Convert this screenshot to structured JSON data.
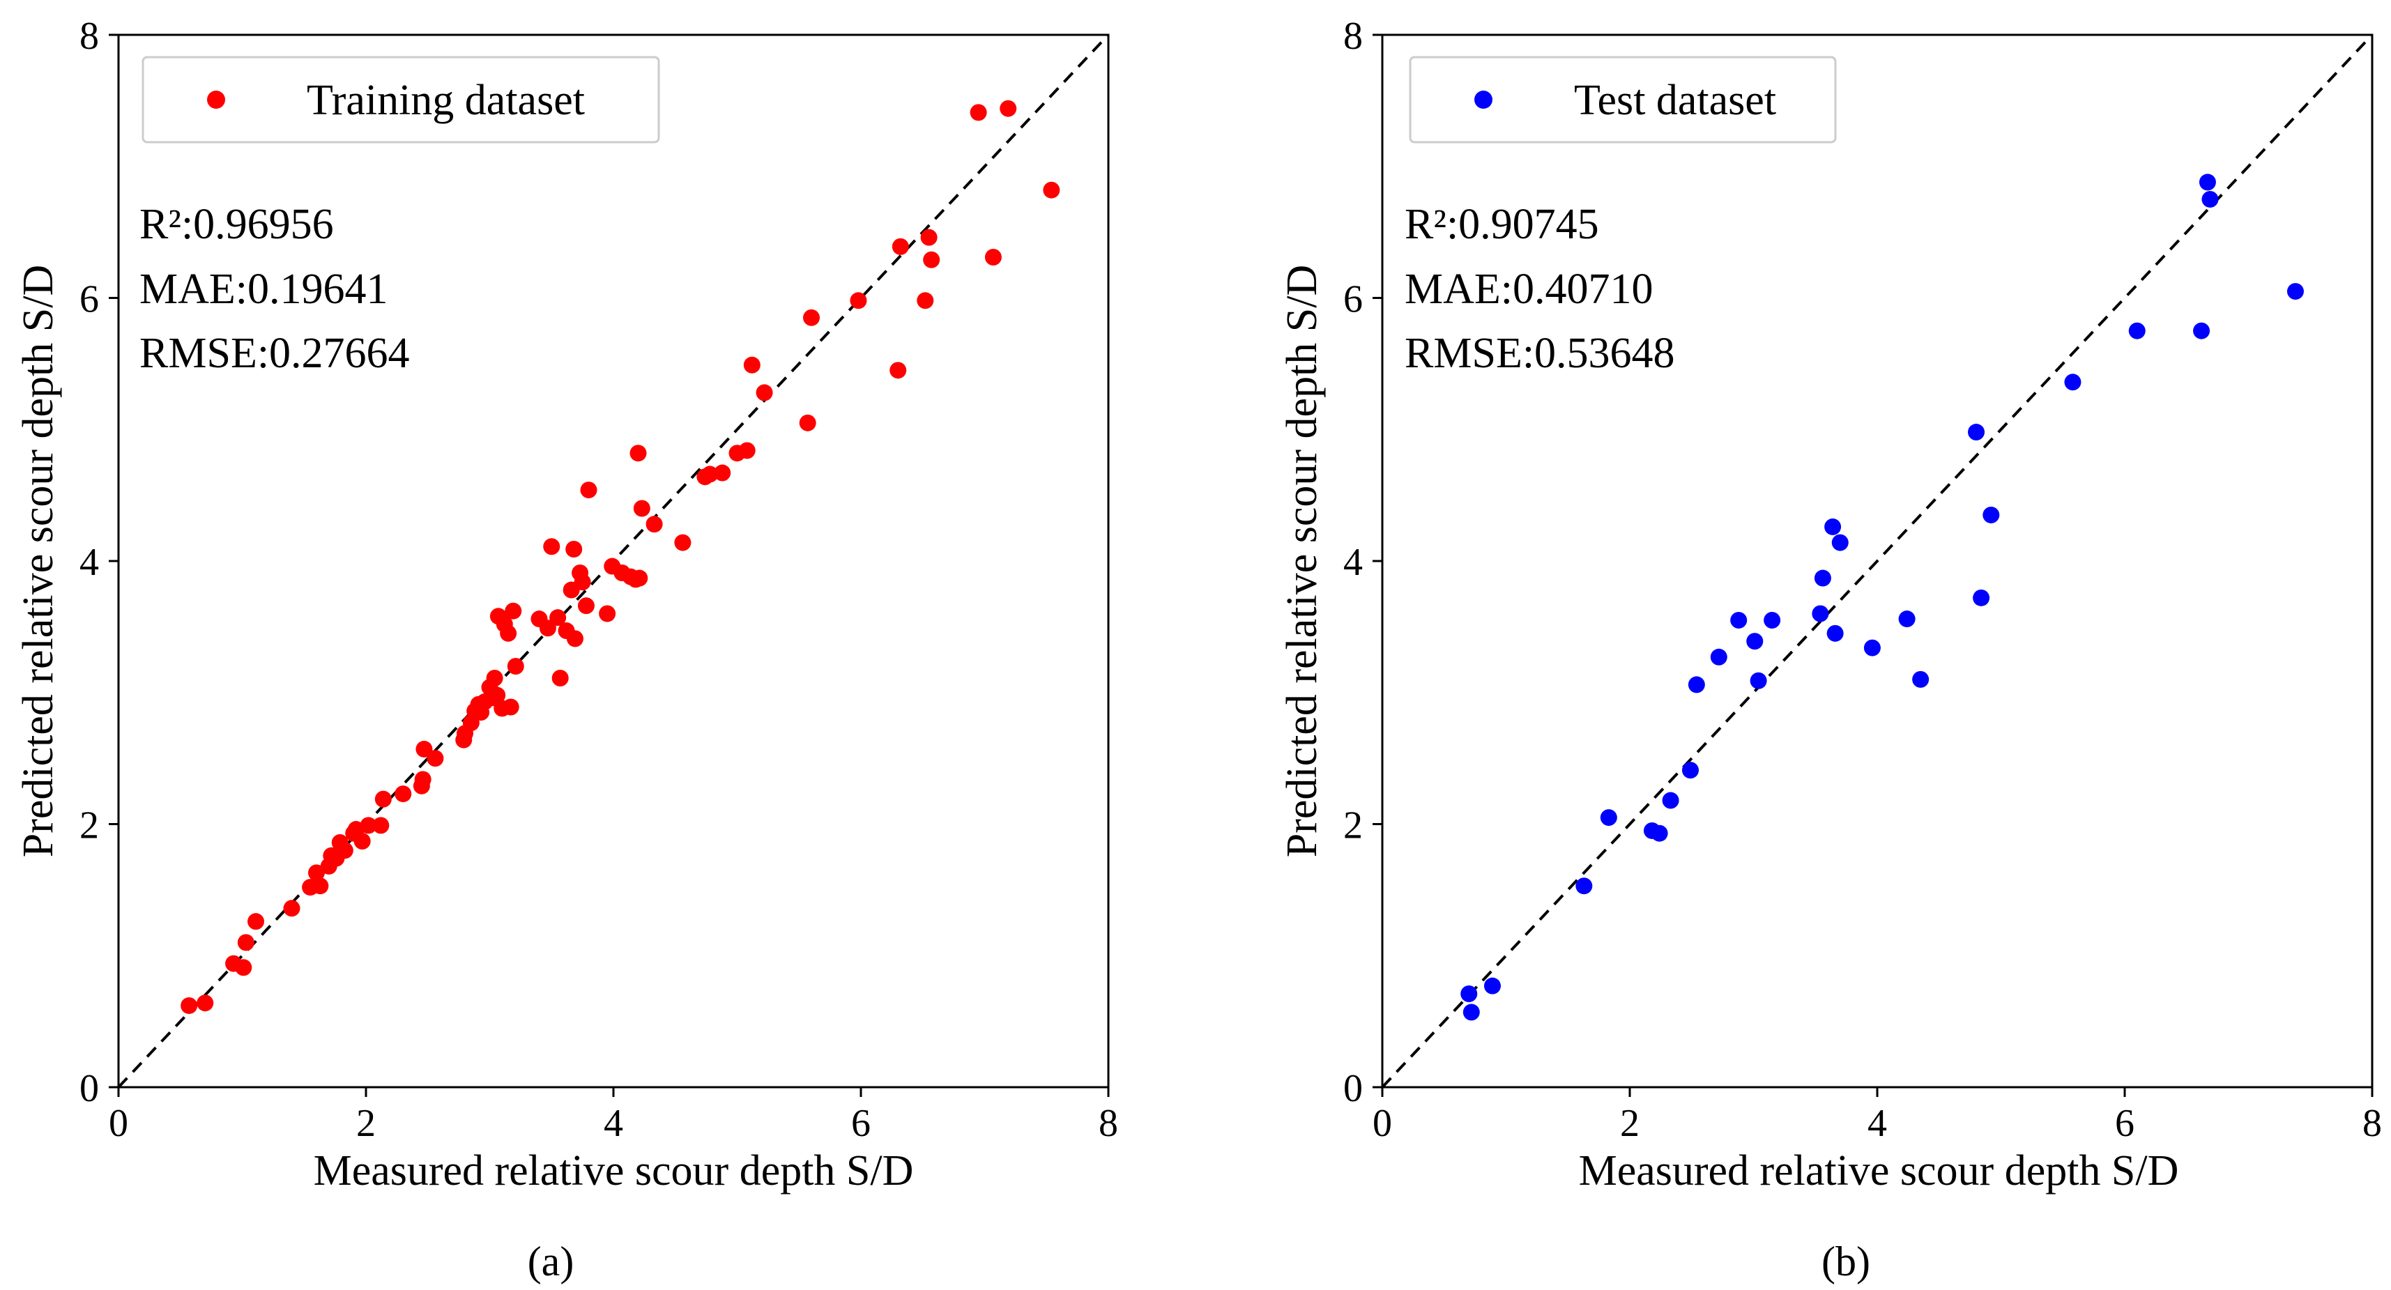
{
  "chart_data": [
    {
      "type": "scatter",
      "panel_label": "(a)",
      "xlabel": "Measured relative scour depth S/D",
      "ylabel": "Predicted relative scour depth S/D",
      "xlim": [
        0,
        8
      ],
      "ylim": [
        0,
        8
      ],
      "xticks": [
        "0",
        "2",
        "4",
        "6",
        "8"
      ],
      "yticks": [
        "0",
        "2",
        "4",
        "6",
        "8"
      ],
      "grid": false,
      "legend_position": "top-left",
      "reference_line": "y = x (dashed)",
      "metrics": [
        "R²:0.96956",
        "MAE:0.19641",
        "RMSE:0.27664"
      ],
      "series": [
        {
          "name": "Training dataset",
          "color": "#ff0000",
          "points": [
            [
              0.57,
              0.62
            ],
            [
              0.7,
              0.64
            ],
            [
              0.93,
              0.94
            ],
            [
              1.01,
              0.91
            ],
            [
              1.03,
              1.1
            ],
            [
              1.11,
              1.26
            ],
            [
              1.4,
              1.36
            ],
            [
              1.55,
              1.52
            ],
            [
              1.6,
              1.63
            ],
            [
              1.63,
              1.53
            ],
            [
              1.7,
              1.68
            ],
            [
              1.72,
              1.76
            ],
            [
              1.76,
              1.74
            ],
            [
              1.79,
              1.86
            ],
            [
              1.83,
              1.8
            ],
            [
              1.9,
              1.93
            ],
            [
              1.92,
              1.96
            ],
            [
              1.97,
              1.87
            ],
            [
              2.02,
              1.99
            ],
            [
              2.12,
              1.99
            ],
            [
              2.14,
              2.19
            ],
            [
              2.3,
              2.23
            ],
            [
              2.45,
              2.29
            ],
            [
              2.46,
              2.34
            ],
            [
              2.47,
              2.57
            ],
            [
              2.56,
              2.5
            ],
            [
              2.79,
              2.64
            ],
            [
              2.8,
              2.69
            ],
            [
              2.85,
              2.77
            ],
            [
              2.88,
              2.86
            ],
            [
              2.91,
              2.91
            ],
            [
              2.93,
              2.85
            ],
            [
              2.96,
              2.93
            ],
            [
              3.0,
              3.04
            ],
            [
              3.03,
              2.96
            ],
            [
              3.04,
              3.11
            ],
            [
              3.06,
              2.98
            ],
            [
              3.07,
              3.58
            ],
            [
              3.1,
              2.88
            ],
            [
              3.12,
              3.52
            ],
            [
              3.15,
              3.45
            ],
            [
              3.17,
              2.89
            ],
            [
              3.19,
              3.62
            ],
            [
              3.21,
              3.2
            ],
            [
              3.4,
              3.56
            ],
            [
              3.47,
              3.49
            ],
            [
              3.5,
              4.11
            ],
            [
              3.55,
              3.57
            ],
            [
              3.57,
              3.11
            ],
            [
              3.62,
              3.47
            ],
            [
              3.66,
              3.78
            ],
            [
              3.68,
              4.09
            ],
            [
              3.69,
              3.41
            ],
            [
              3.73,
              3.91
            ],
            [
              3.75,
              3.84
            ],
            [
              3.78,
              3.66
            ],
            [
              3.8,
              4.54
            ],
            [
              3.95,
              3.6
            ],
            [
              3.99,
              3.96
            ],
            [
              4.07,
              3.91
            ],
            [
              4.14,
              3.88
            ],
            [
              4.18,
              3.86
            ],
            [
              4.21,
              3.87
            ],
            [
              4.2,
              4.82
            ],
            [
              4.23,
              4.4
            ],
            [
              4.33,
              4.28
            ],
            [
              4.56,
              4.14
            ],
            [
              4.74,
              4.64
            ],
            [
              4.78,
              4.66
            ],
            [
              4.88,
              4.67
            ],
            [
              5.0,
              4.82
            ],
            [
              5.08,
              4.84
            ],
            [
              5.12,
              5.49
            ],
            [
              5.22,
              5.28
            ],
            [
              5.57,
              5.05
            ],
            [
              5.6,
              5.85
            ],
            [
              5.98,
              5.98
            ],
            [
              6.3,
              5.45
            ],
            [
              6.32,
              6.39
            ],
            [
              6.52,
              5.98
            ],
            [
              6.55,
              6.46
            ],
            [
              6.57,
              6.29
            ],
            [
              6.95,
              7.41
            ],
            [
              7.07,
              6.31
            ],
            [
              7.19,
              7.44
            ],
            [
              7.54,
              6.82
            ]
          ]
        }
      ]
    },
    {
      "type": "scatter",
      "panel_label": "(b)",
      "xlabel": "Measured relative scour depth S/D",
      "ylabel": "Predicted relative scour depth S/D",
      "xlim": [
        0,
        8
      ],
      "ylim": [
        0,
        8
      ],
      "xticks": [
        "0",
        "2",
        "4",
        "6",
        "8"
      ],
      "yticks": [
        "0",
        "2",
        "4",
        "6",
        "8"
      ],
      "grid": false,
      "legend_position": "top-left",
      "reference_line": "y = x (dashed)",
      "metrics": [
        "R²:0.90745",
        "MAE:0.40710",
        "RMSE:0.53648"
      ],
      "series": [
        {
          "name": "Test dataset",
          "color": "#0000ff",
          "points": [
            [
              0.7,
              0.71
            ],
            [
              0.72,
              0.57
            ],
            [
              0.89,
              0.77
            ],
            [
              1.63,
              1.53
            ],
            [
              1.83,
              2.05
            ],
            [
              2.18,
              1.95
            ],
            [
              2.24,
              1.93
            ],
            [
              2.33,
              2.18
            ],
            [
              2.49,
              2.41
            ],
            [
              2.54,
              3.06
            ],
            [
              2.72,
              3.27
            ],
            [
              2.88,
              3.55
            ],
            [
              3.01,
              3.39
            ],
            [
              3.04,
              3.09
            ],
            [
              3.15,
              3.55
            ],
            [
              3.54,
              3.6
            ],
            [
              3.56,
              3.87
            ],
            [
              3.64,
              4.26
            ],
            [
              3.66,
              3.45
            ],
            [
              3.7,
              4.14
            ],
            [
              3.96,
              3.34
            ],
            [
              4.24,
              3.56
            ],
            [
              4.35,
              3.1
            ],
            [
              4.8,
              4.98
            ],
            [
              4.84,
              3.72
            ],
            [
              4.92,
              4.35
            ],
            [
              5.58,
              5.36
            ],
            [
              6.1,
              5.75
            ],
            [
              6.62,
              5.75
            ],
            [
              6.67,
              6.88
            ],
            [
              6.69,
              6.75
            ],
            [
              7.38,
              6.05
            ]
          ]
        }
      ]
    }
  ]
}
